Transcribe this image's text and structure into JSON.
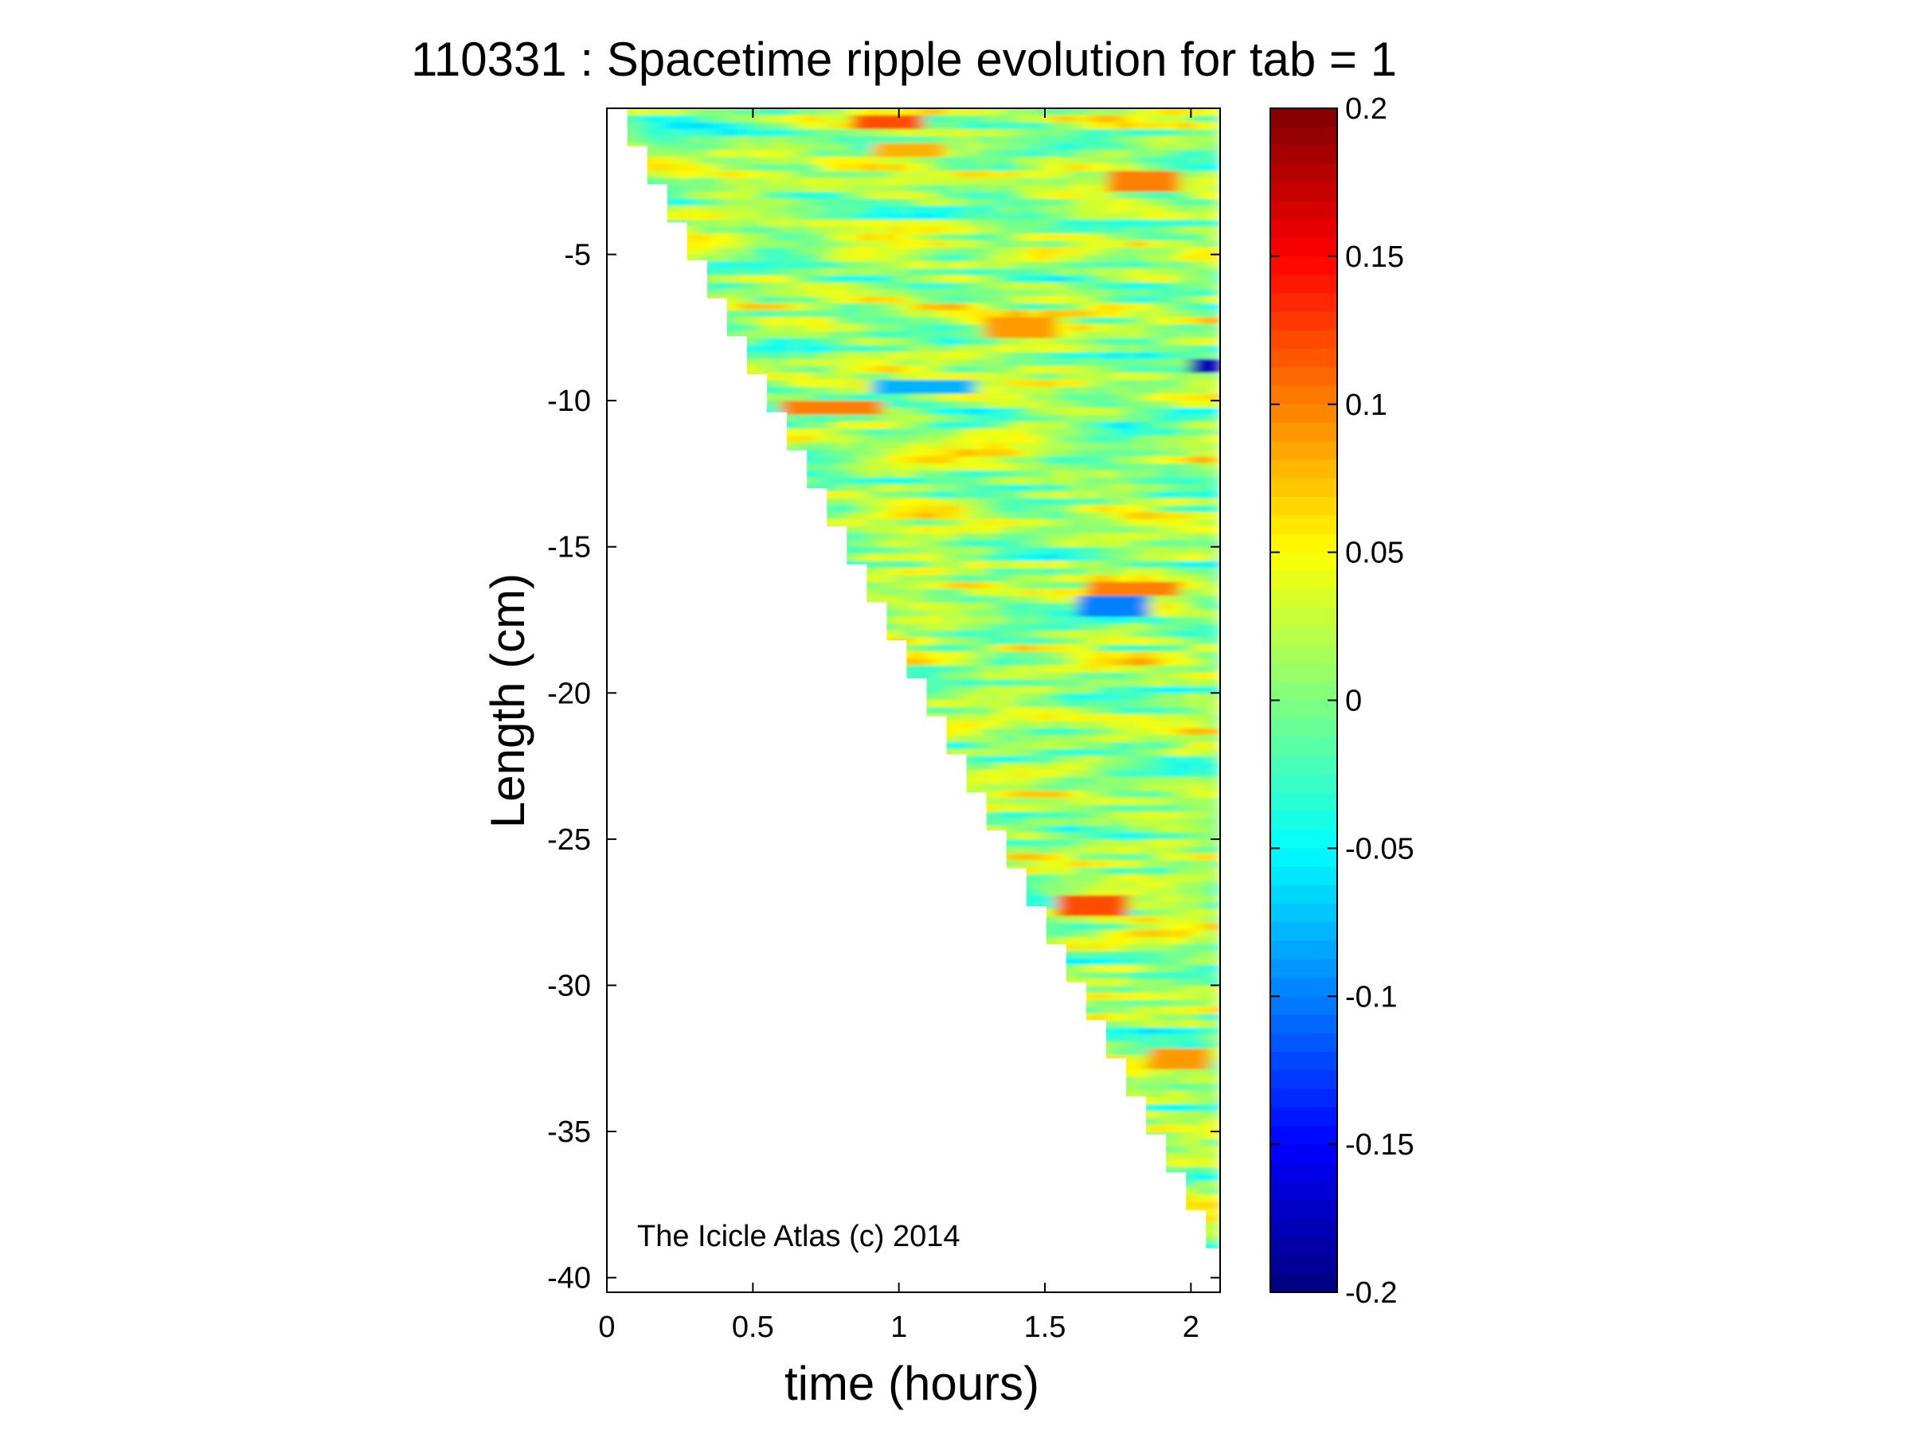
{
  "chart_data": {
    "type": "heatmap",
    "title": "110331 : Spacetime ripple evolution for tab = 1",
    "xlabel": "time (hours)",
    "ylabel": "Length (cm)",
    "xlim": [
      0,
      2.1
    ],
    "ylim": [
      -40.5,
      0
    ],
    "x_ticks": [
      0,
      0.5,
      1,
      1.5,
      2
    ],
    "x_tick_labels": [
      "0",
      "0.5",
      "1",
      "1.5",
      "2"
    ],
    "y_ticks": [
      -5,
      -10,
      -15,
      -20,
      -25,
      -30,
      -35,
      -40
    ],
    "y_tick_labels": [
      "-5",
      "-10",
      "-15",
      "-20",
      "-25",
      "-30",
      "-35",
      "-40"
    ],
    "colorbar": {
      "colormap": "jet",
      "range": [
        -0.2,
        0.2
      ],
      "ticks": [
        0.2,
        0.15,
        0.1,
        0.05,
        0,
        -0.05,
        -0.1,
        -0.15,
        -0.2
      ],
      "tick_labels": [
        "0.2",
        "0.15",
        "0.1",
        "0.05",
        "0",
        "-0.05",
        "-0.1",
        "-0.15",
        "-0.2"
      ],
      "placement": "right"
    },
    "data_extent": {
      "description_of_region": "Triangular region: data present where length >= -39.0 * (time / 2.05); growth front moves downward in steps",
      "front_points": [
        [
          0,
          0
        ],
        [
          2.05,
          -39.0
        ]
      ],
      "x_max": 2.1,
      "background_value": 0
    },
    "notable_features": [
      {
        "time": [
          0.83,
          1.1
        ],
        "length": -0.5,
        "value": 0.12
      },
      {
        "time": [
          0.9,
          1.15
        ],
        "length": -1.4,
        "value": 0.08
      },
      {
        "time": [
          1.73,
          1.95
        ],
        "length": -2.5,
        "value": 0.1
      },
      {
        "time": [
          1.3,
          1.55
        ],
        "length": -7.5,
        "value": 0.09
      },
      {
        "time": [
          2.0,
          2.1
        ],
        "length": -8.8,
        "value": -0.18
      },
      {
        "time": [
          0.6,
          0.95
        ],
        "length": -10.2,
        "value": 0.1
      },
      {
        "time": [
          0.9,
          1.25
        ],
        "length": -9.6,
        "value": -0.08
      },
      {
        "time": [
          1.65,
          1.95
        ],
        "length": -16.4,
        "value": 0.1
      },
      {
        "time": [
          1.6,
          1.85
        ],
        "length": -17.0,
        "value": -0.1
      },
      {
        "time": [
          1.55,
          1.8
        ],
        "length": -27.3,
        "value": 0.12
      },
      {
        "time": [
          1.85,
          2.05
        ],
        "length": -32.5,
        "value": 0.09
      }
    ],
    "annotation": "The Icicle Atlas (c) 2014"
  }
}
